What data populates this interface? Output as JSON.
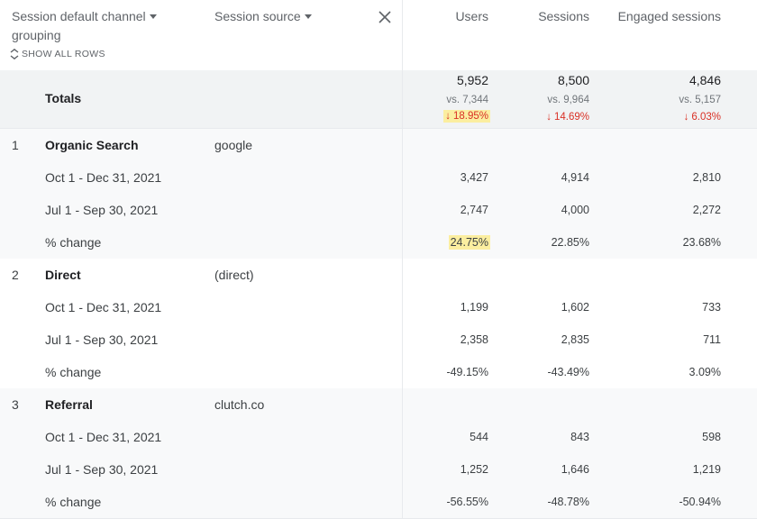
{
  "header": {
    "dim1_label": "Session default channel",
    "dim1_label_line2": "grouping",
    "show_all_rows": "SHOW ALL ROWS",
    "dim2_label": "Session source",
    "metrics": [
      "Users",
      "Sessions",
      "Engaged sessions"
    ]
  },
  "totals": {
    "label": "Totals",
    "values": [
      "5,952",
      "8,500",
      "4,846"
    ],
    "vs": [
      "vs. 7,344",
      "vs. 9,964",
      "vs. 5,157"
    ],
    "change": [
      "18.95%",
      "14.69%",
      "6.03%"
    ]
  },
  "groups": [
    {
      "index": "1",
      "channel": "Organic Search",
      "source": "google",
      "rows": [
        {
          "label": "Oct 1 - Dec 31, 2021",
          "values": [
            "3,427",
            "4,914",
            "2,810"
          ]
        },
        {
          "label": "Jul 1 - Sep 30, 2021",
          "values": [
            "2,747",
            "4,000",
            "2,272"
          ]
        },
        {
          "label": "% change",
          "values": [
            "24.75%",
            "22.85%",
            "23.68%"
          ]
        }
      ]
    },
    {
      "index": "2",
      "channel": "Direct",
      "source": "(direct)",
      "rows": [
        {
          "label": "Oct 1 - Dec 31, 2021",
          "values": [
            "1,199",
            "1,602",
            "733"
          ]
        },
        {
          "label": "Jul 1 - Sep 30, 2021",
          "values": [
            "2,358",
            "2,835",
            "711"
          ]
        },
        {
          "label": "% change",
          "values": [
            "-49.15%",
            "-43.49%",
            "3.09%"
          ]
        }
      ]
    },
    {
      "index": "3",
      "channel": "Referral",
      "source": "clutch.co",
      "rows": [
        {
          "label": "Oct 1 - Dec 31, 2021",
          "values": [
            "544",
            "843",
            "598"
          ]
        },
        {
          "label": "Jul 1 - Sep 30, 2021",
          "values": [
            "1,252",
            "1,646",
            "1,219"
          ]
        },
        {
          "label": "% change",
          "values": [
            "-56.55%",
            "-48.78%",
            "-50.94%"
          ]
        }
      ]
    }
  ],
  "colors": {
    "highlight": "#fbeea0",
    "negative": "#d93025",
    "row_alt": "#f8f9fa",
    "totals_bg": "#f1f3f4"
  }
}
